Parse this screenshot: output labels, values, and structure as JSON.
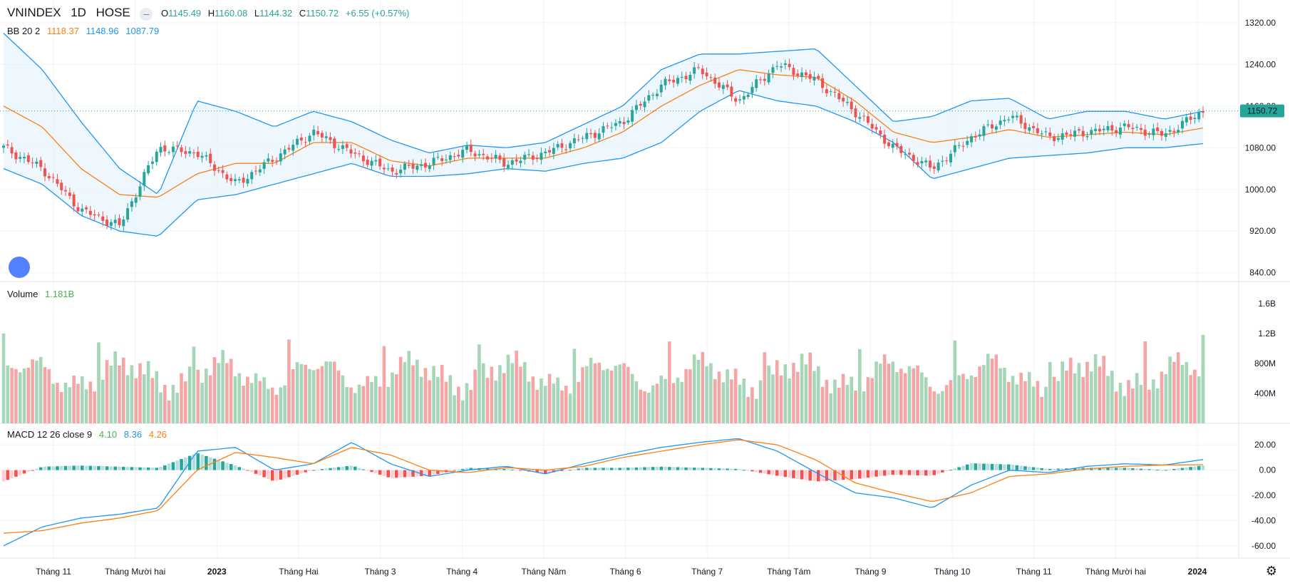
{
  "symbol": "VNINDEX",
  "interval": "1D",
  "exchange": "HOSE",
  "ohlc": {
    "open_label": "O",
    "open": "1145.49",
    "high_label": "H",
    "high": "1160.08",
    "low_label": "L",
    "low": "1144.32",
    "close_label": "C",
    "close": "1150.72",
    "change": "+6.55 (+0.57%)"
  },
  "bb_legend": {
    "name": "BB 20 2",
    "basis": "1118.37",
    "upper": "1148.96",
    "lower": "1087.79"
  },
  "volume_legend": {
    "name": "Volume",
    "value": "1.181B"
  },
  "macd_legend": {
    "name": "MACD 12 26 close 9",
    "hist": "4.10",
    "macd": "8.36",
    "signal": "4.26"
  },
  "last_price_tag": "1150.72",
  "colors": {
    "up": "#26a69a",
    "down": "#ef5350",
    "vol_up": "#a5d6b7",
    "vol_down": "#f4a6a6",
    "basis": "#ff7f0e",
    "band": "#2196f3",
    "band_fill": "#e3f2fd"
  },
  "settings_icon": "gear-icon",
  "chart_data": [
    {
      "type": "candlestick",
      "title": "VNINDEX",
      "x_labels": [
        "Tháng 11",
        "Tháng Mười hai",
        "2023",
        "Tháng Hai",
        "Tháng 3",
        "Tháng 4",
        "Tháng Năm",
        "Tháng 6",
        "Tháng 7",
        "Tháng Tám",
        "Tháng 9",
        "Tháng 10",
        "Tháng 11",
        "Tháng Mười hai",
        "2024"
      ],
      "y_ticks": [
        "1320.00",
        "1240.00",
        "1160.00",
        "1080.00",
        "1000.00",
        "920.00",
        "840.00"
      ],
      "ylim": [
        830,
        1350
      ],
      "trend_close": [
        1080,
        1040,
        960,
        930,
        1080,
        1070,
        1010,
        1060,
        1110,
        1070,
        1035,
        1050,
        1075,
        1050,
        1070,
        1100,
        1130,
        1200,
        1230,
        1170,
        1240,
        1210,
        1150,
        1080,
        1040,
        1100,
        1140,
        1100,
        1110,
        1120,
        1105,
        1150
      ],
      "trend_high": [
        1090,
        1065,
        1010,
        1000,
        1100,
        1090,
        1050,
        1080,
        1125,
        1090,
        1060,
        1075,
        1090,
        1070,
        1090,
        1115,
        1145,
        1215,
        1245,
        1240,
        1255,
        1230,
        1170,
        1100,
        1060,
        1115,
        1155,
        1120,
        1125,
        1135,
        1125,
        1160
      ],
      "trend_low": [
        1060,
        1010,
        920,
        870,
        1050,
        1040,
        990,
        1040,
        1090,
        1050,
        1020,
        1030,
        1050,
        1035,
        1055,
        1080,
        1110,
        1180,
        1210,
        1160,
        1220,
        1190,
        1130,
        1060,
        1020,
        1080,
        1120,
        1080,
        1090,
        1095,
        1085,
        1140
      ],
      "bb_upper": [
        1300,
        1230,
        1130,
        1040,
        990,
        1170,
        1150,
        1120,
        1150,
        1130,
        1095,
        1070,
        1085,
        1080,
        1090,
        1125,
        1160,
        1230,
        1260,
        1260,
        1265,
        1270,
        1200,
        1130,
        1140,
        1170,
        1175,
        1135,
        1150,
        1150,
        1135,
        1150
      ],
      "bb_basis": [
        1160,
        1120,
        1040,
        990,
        985,
        1030,
        1050,
        1050,
        1090,
        1090,
        1055,
        1045,
        1060,
        1060,
        1060,
        1080,
        1110,
        1160,
        1200,
        1230,
        1220,
        1215,
        1170,
        1110,
        1090,
        1100,
        1115,
        1100,
        1105,
        1110,
        1105,
        1118
      ],
      "bb_lower": [
        1040,
        1010,
        950,
        920,
        910,
        980,
        990,
        1010,
        1030,
        1050,
        1025,
        1025,
        1030,
        1040,
        1035,
        1050,
        1060,
        1090,
        1150,
        1190,
        1170,
        1160,
        1130,
        1090,
        1020,
        1040,
        1060,
        1065,
        1070,
        1080,
        1080,
        1088
      ],
      "last": 1150.72
    },
    {
      "type": "bar",
      "title": "Volume",
      "y_ticks": [
        "1.6B",
        "1.2B",
        "800M",
        "400M"
      ],
      "ylim": [
        0,
        1750000000
      ],
      "last_value": 1181000000
    },
    {
      "type": "bar",
      "title": "MACD 12 26 close 9",
      "y_ticks": [
        "20.00",
        "0.00",
        "-20.00",
        "-40.00",
        "-60.00"
      ],
      "ylim": [
        -68,
        28
      ],
      "macd": [
        -60,
        -45,
        -38,
        -35,
        -30,
        15,
        18,
        0,
        5,
        22,
        5,
        -5,
        0,
        3,
        -3,
        5,
        12,
        18,
        22,
        25,
        15,
        -2,
        -18,
        -22,
        -30,
        -12,
        0,
        -2,
        3,
        5,
        4,
        8.36
      ],
      "signal": [
        -50,
        -48,
        -42,
        -38,
        -32,
        0,
        14,
        10,
        5,
        18,
        12,
        0,
        -2,
        2,
        0,
        3,
        10,
        15,
        20,
        24,
        20,
        8,
        -10,
        -18,
        -25,
        -18,
        -5,
        -3,
        1,
        3,
        4,
        4.26
      ],
      "hist_last": 4.1
    }
  ]
}
